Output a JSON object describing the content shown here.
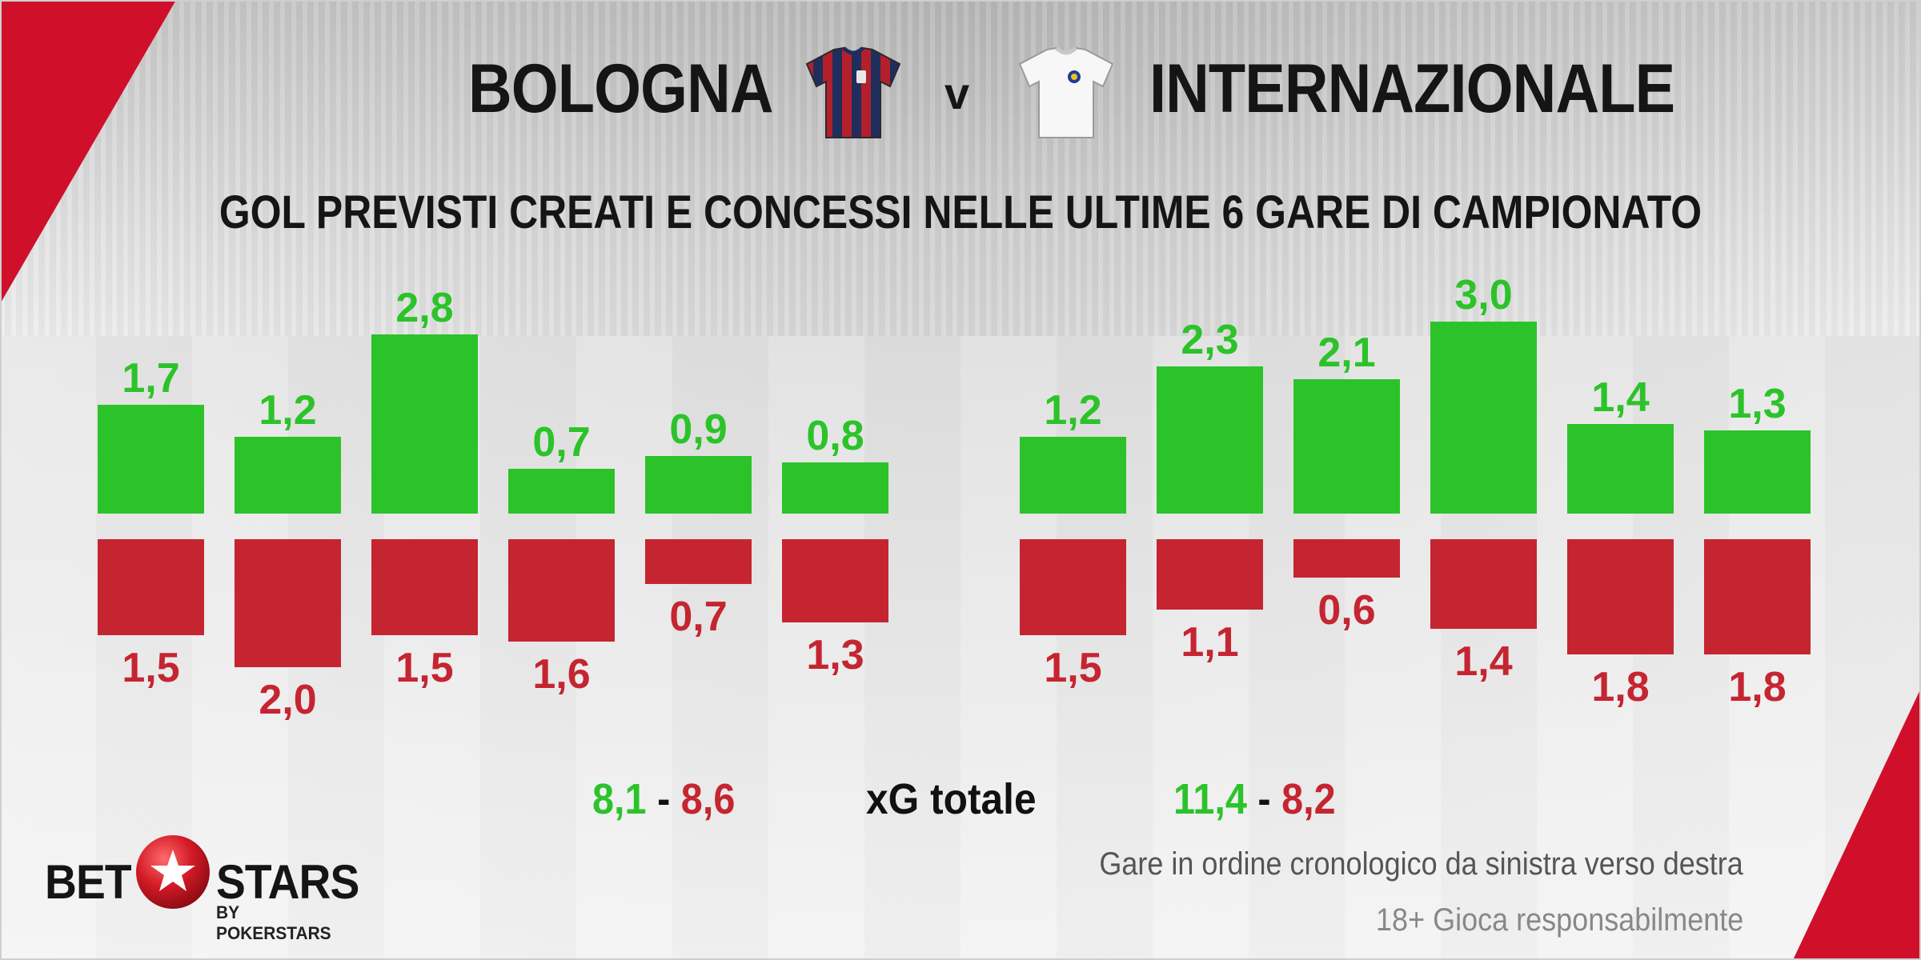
{
  "header": {
    "home_team": "BOLOGNA",
    "vs": "v",
    "away_team": "INTERNAZIONALE",
    "home_shirt_icon": "bologna-shirt-icon",
    "away_shirt_icon": "inter-white-shirt-icon"
  },
  "chart_data": {
    "type": "bar",
    "title": "GOL PREVISTI CREATI E CONCESSI NELLE ULTIME 6 GARE DI CAMPIONATO",
    "panels": [
      {
        "team": "BOLOGNA",
        "series": [
          {
            "values": [
              1.7,
              1.2,
              2.8,
              0.7,
              0.9,
              0.8
            ],
            "labels": [
              "1,7",
              "1,2",
              "2,8",
              "0,7",
              "0,9",
              "0,8"
            ],
            "color": "#2cc32a"
          },
          {
            "values": [
              1.5,
              2.0,
              1.5,
              1.6,
              0.7,
              1.3
            ],
            "labels": [
              "1,5",
              "2,0",
              "1,5",
              "1,6",
              "0,7",
              "1,3"
            ],
            "color": "#c52531"
          }
        ]
      },
      {
        "team": "INTERNAZIONALE",
        "series": [
          {
            "values": [
              1.2,
              2.3,
              2.1,
              3.0,
              1.4,
              1.3
            ],
            "labels": [
              "1,2",
              "2,3",
              "2,1",
              "3,0",
              "1,4",
              "1,3"
            ],
            "color": "#2cc32a"
          },
          {
            "values": [
              1.5,
              1.1,
              0.6,
              1.4,
              1.8,
              1.8
            ],
            "labels": [
              "1,5",
              "1,1",
              "0,6",
              "1,4",
              "1,8",
              "1,8"
            ],
            "color": "#c52531"
          }
        ]
      }
    ]
  },
  "totals": {
    "label": "xG totale",
    "home_created": "8,1",
    "home_conceded": "8,6",
    "away_created": "11,4",
    "away_conceded": "8,2",
    "separator": "-"
  },
  "footer": {
    "logo_bet": "BET",
    "logo_stars": "STARS",
    "logo_sub": "BY POKERSTARS",
    "logo_icon": "star-ball-icon",
    "note_order": "Gare in ordine cronologico da sinistra verso destra",
    "note_responsible": "18+ Gioca responsabilmente"
  },
  "colors": {
    "created": "#2cc32a",
    "conceded": "#c52531",
    "accent": "#d0102a"
  }
}
